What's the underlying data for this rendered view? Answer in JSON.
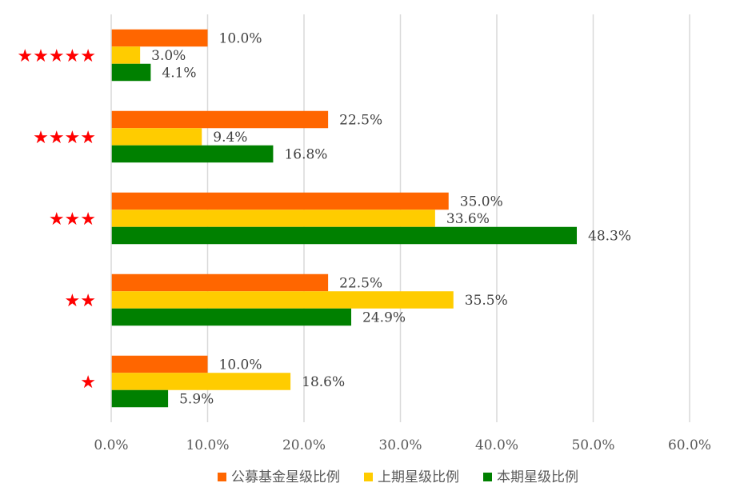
{
  "chart_data": {
    "type": "bar",
    "orientation": "horizontal",
    "categories": [
      "★★★★★",
      "★★★★",
      "★★★",
      "★★",
      "★"
    ],
    "series": [
      {
        "name": "公募基金星级比例",
        "color": "#ff6600",
        "values": [
          10.0,
          22.5,
          35.0,
          22.5,
          10.0
        ]
      },
      {
        "name": "上期星级比例",
        "color": "#ffcc00",
        "values": [
          3.0,
          9.4,
          33.6,
          35.5,
          18.6
        ]
      },
      {
        "name": "本期星级比例",
        "color": "#008000",
        "values": [
          4.1,
          16.8,
          48.3,
          24.9,
          5.9
        ]
      }
    ],
    "xlim": [
      0,
      60
    ],
    "xticks": [
      0,
      10,
      20,
      30,
      40,
      50,
      60
    ],
    "tick_format": "percent_1dp",
    "category_color": "#ff0000",
    "grid": true,
    "legend": "bottom",
    "title": "",
    "xlabel": "",
    "ylabel": ""
  }
}
